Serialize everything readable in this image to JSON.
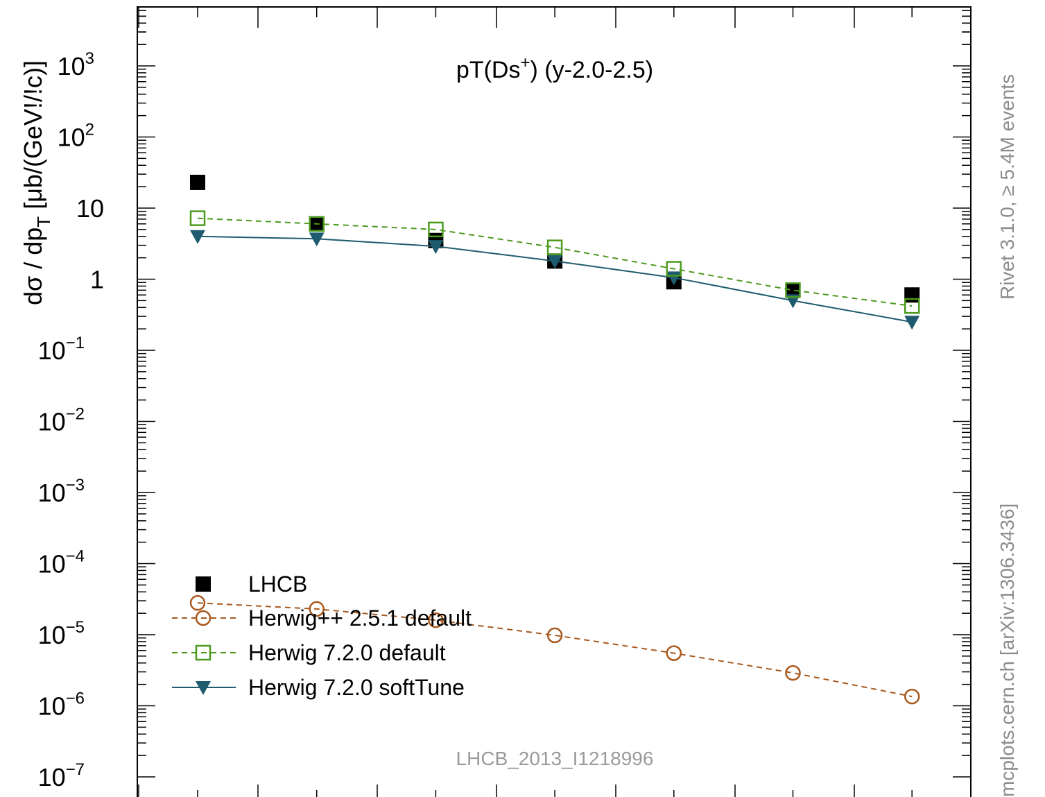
{
  "chart_data": {
    "type": "line",
    "title": "pT(Ds+) (y-2.0-2.5)",
    "title_parts": {
      "main": "pT(Ds",
      "sup": "+",
      "tail": ") (y-2.0-2.5)"
    },
    "ylabel": "dσ / dp_T [μb/(GeV!/!c)]",
    "ylabel_parts": {
      "a": "dσ / dp",
      "sub": "T",
      "b": " [μb/(GeV!/!c)]"
    },
    "yscale": "log",
    "ylim": [
      1e-07,
      5000
    ],
    "xlim": [
      0.5,
      7.5
    ],
    "x": [
      1,
      2,
      3,
      4,
      5,
      6,
      7
    ],
    "y_ticks": [
      {
        "value": 1e-07,
        "label": "10",
        "exp": "−7"
      },
      {
        "value": 1e-06,
        "label": "10",
        "exp": "−6"
      },
      {
        "value": 1e-05,
        "label": "10",
        "exp": "−5"
      },
      {
        "value": 0.0001,
        "label": "10",
        "exp": "−4"
      },
      {
        "value": 0.001,
        "label": "10",
        "exp": "−3"
      },
      {
        "value": 0.01,
        "label": "10",
        "exp": "−2"
      },
      {
        "value": 0.1,
        "label": "10",
        "exp": "−1"
      },
      {
        "value": 1,
        "label": "1",
        "exp": ""
      },
      {
        "value": 10,
        "label": "10",
        "exp": ""
      },
      {
        "value": 100,
        "label": "10",
        "exp": "2"
      },
      {
        "value": 1000,
        "label": "10",
        "exp": "3"
      }
    ],
    "series": [
      {
        "name": "LHCB",
        "marker": "filled-square",
        "line": "none",
        "color": "#000000",
        "values": [
          23,
          6.0,
          3.5,
          1.8,
          0.92,
          0.7,
          0.6
        ]
      },
      {
        "name": "Herwig++ 2.5.1 default",
        "marker": "open-circle",
        "line": "dashed",
        "color": "#a8581d",
        "values": [
          2.8e-05,
          2.3e-05,
          1.6e-05,
          9.8e-06,
          5.5e-06,
          2.9e-06,
          1.35e-06
        ]
      },
      {
        "name": "Herwig 7.2.0 default",
        "marker": "open-square",
        "line": "dashed",
        "color": "#4b9a1e",
        "values": [
          7.2,
          6.0,
          5.0,
          2.8,
          1.4,
          0.7,
          0.42
        ]
      },
      {
        "name": "Herwig 7.2.0 softTune",
        "marker": "filled-triangle-down",
        "line": "solid",
        "color": "#1f5b6e",
        "values": [
          4.0,
          3.7,
          2.9,
          1.8,
          1.05,
          0.5,
          0.25
        ]
      }
    ],
    "legend_placement": "bottom-left",
    "grid": false
  },
  "annotations": {
    "analysis_id": "LHCB_2013_I1218996",
    "rivet_label": "Rivet 3.1.0, ≥ 5.4M events",
    "mcplots_label": "mcplots.cern.ch [arXiv:1306.3436]"
  }
}
